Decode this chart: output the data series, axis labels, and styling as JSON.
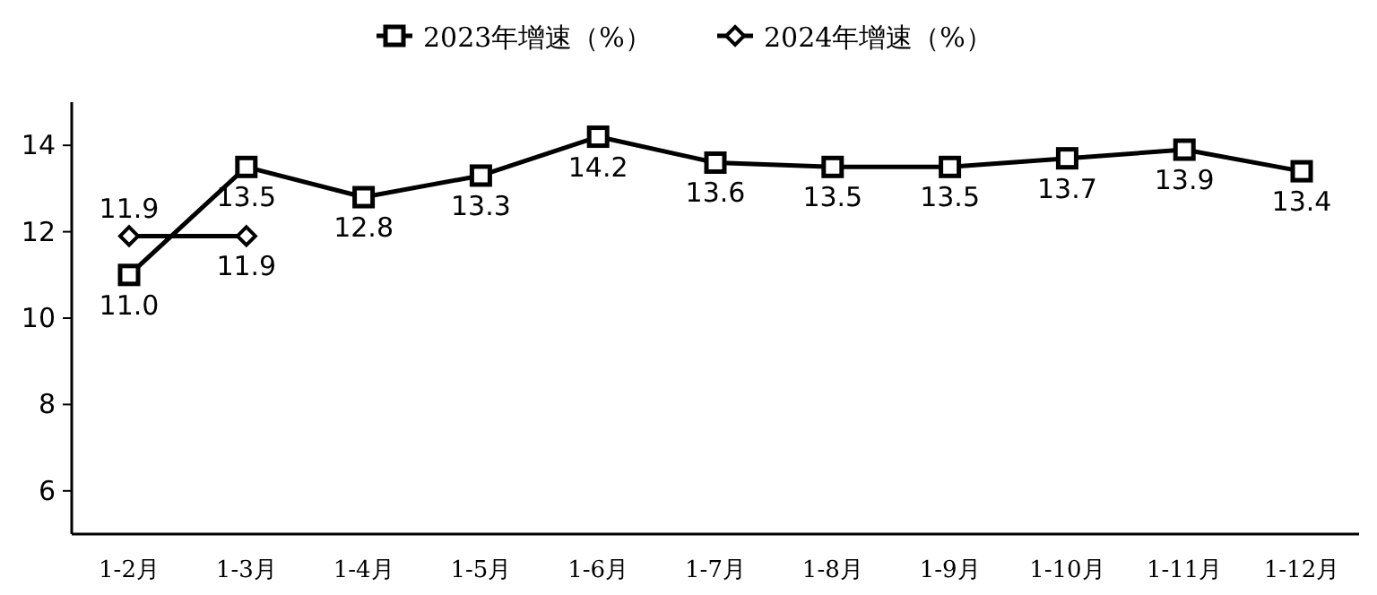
{
  "chart_data": {
    "type": "line",
    "categories": [
      "1-2月",
      "1-3月",
      "1-4月",
      "1-5月",
      "1-6月",
      "1-7月",
      "1-8月",
      "1-9月",
      "1-10月",
      "1-11月",
      "1-12月"
    ],
    "series": [
      {
        "name": "2023年增速（%）",
        "color": "#000000",
        "marker": "square",
        "values": [
          11.0,
          13.5,
          12.8,
          13.3,
          14.2,
          13.6,
          13.5,
          13.5,
          13.7,
          13.9,
          13.4
        ],
        "value_labels": [
          "11.0",
          "13.5",
          "12.8",
          "13.3",
          "14.2",
          "13.6",
          "13.5",
          "13.5",
          "13.7",
          "13.9",
          "13.4"
        ]
      },
      {
        "name": "2024年增速（%）",
        "color": "#000000",
        "marker": "diamond",
        "values": [
          11.9,
          11.9,
          null,
          null,
          null,
          null,
          null,
          null,
          null,
          null,
          null
        ],
        "value_labels": [
          "11.9",
          "11.9",
          null,
          null,
          null,
          null,
          null,
          null,
          null,
          null,
          null
        ]
      }
    ],
    "ylim": [
      5,
      15
    ],
    "yticks": [
      6,
      8,
      10,
      12,
      14
    ],
    "grid": false,
    "legend": "top",
    "line_style": "solid"
  }
}
